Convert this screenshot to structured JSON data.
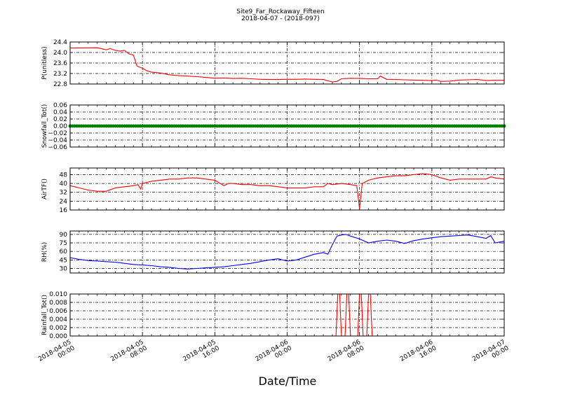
{
  "figure": {
    "title_line1": "Site9_Far_Rockaway_Fifteen",
    "title_line2": "2018-04-07 - (2018-097)",
    "xlabel": "Date/Time"
  },
  "chart_data": {
    "type": "line",
    "x_axis": {
      "range": [
        "2018-04-05 00:00",
        "2018-04-07 00:00"
      ],
      "ticks": [
        "2018-04-05 00:00",
        "2018-04-05 08:00",
        "2018-04-05 16:00",
        "2018-04-06 00:00",
        "2018-04-06 08:00",
        "2018-04-06 16:00",
        "2018-04-07 00:00"
      ],
      "tick_labels": [
        [
          "2018-04-05",
          "00:00"
        ],
        [
          "2018-04-05",
          "08:00"
        ],
        [
          "2018-04-05",
          "16:00"
        ],
        [
          "2018-04-06",
          "00:00"
        ],
        [
          "2018-04-06",
          "08:00"
        ],
        [
          "2018-04-06",
          "16:00"
        ],
        [
          "2018-04-07",
          "00:00"
        ]
      ]
    },
    "grid": "dash-dot, black",
    "panels": [
      {
        "ylabel": "P(unitless)",
        "ylim": [
          22.8,
          24.4
        ],
        "yticks": [
          "24.4",
          "24.0",
          "23.6",
          "23.2",
          "22.8"
        ],
        "ytick_values": [
          24.4,
          24.0,
          23.6,
          23.2,
          22.8
        ],
        "color": "#ff0000",
        "marker": false,
        "hours": [
          0,
          3,
          4,
          4.4,
          5,
          5.5,
          6,
          6.5,
          7,
          7.4,
          8,
          8.5,
          9,
          10,
          11,
          12,
          13,
          14,
          15,
          16,
          17,
          18,
          19,
          20,
          21,
          22,
          23,
          24,
          25,
          26,
          27,
          28,
          28.5,
          29,
          29.5,
          30,
          31,
          32,
          33,
          34,
          34.3,
          35,
          36,
          37,
          38,
          39,
          40,
          40.5,
          41,
          42,
          43,
          44,
          45,
          46,
          47,
          48
        ],
        "values": [
          24.17,
          24.18,
          24.1,
          24.15,
          24.08,
          24.05,
          24.08,
          23.95,
          23.9,
          23.48,
          23.4,
          23.3,
          23.25,
          23.22,
          23.15,
          23.12,
          23.1,
          23.08,
          23.05,
          23.02,
          23.03,
          23.01,
          23.02,
          23.0,
          22.98,
          22.97,
          22.97,
          22.98,
          22.98,
          22.99,
          22.98,
          22.97,
          22.92,
          22.88,
          22.9,
          23.0,
          23.02,
          23.01,
          23.0,
          23.0,
          23.1,
          22.98,
          22.97,
          22.96,
          22.95,
          22.94,
          22.93,
          22.95,
          22.9,
          22.91,
          22.95,
          22.96,
          22.97,
          22.93,
          22.94,
          22.94
        ]
      },
      {
        "ylabel": "Snowfall_Tot()",
        "ylim": [
          -0.06,
          0.06
        ],
        "yticks": [
          "0.06",
          "0.04",
          "0.02",
          "0.00",
          "−0.02",
          "−0.04",
          "−0.06"
        ],
        "ytick_values": [
          0.06,
          0.04,
          0.02,
          0.0,
          -0.02,
          -0.04,
          -0.06
        ],
        "color": "#008000",
        "marker": true,
        "hours": [
          0,
          0.25,
          0.5,
          0.75,
          1,
          1.25,
          1.5,
          1.75,
          2,
          2.25,
          2.5,
          2.75,
          3,
          3.25,
          3.5,
          3.75,
          4,
          4.25,
          4.5,
          4.75,
          5,
          5.25,
          5.5,
          5.75,
          6,
          6.25,
          6.5,
          6.75,
          7,
          7.25,
          7.5,
          7.75,
          8,
          8.25,
          8.5,
          8.75,
          9,
          9.25,
          9.5,
          9.75,
          10,
          10.25,
          10.5,
          10.75,
          11,
          11.25,
          11.5,
          11.75,
          12,
          12.25,
          12.5,
          12.75,
          13,
          13.25,
          13.5,
          13.75,
          14,
          14.25,
          14.5,
          14.75,
          15,
          15.25,
          15.5,
          15.75,
          16,
          16.25,
          16.5,
          16.75,
          17,
          17.25,
          17.5,
          17.75,
          18,
          18.25,
          18.5,
          18.75,
          19,
          19.25,
          19.5,
          19.75,
          20,
          20.25,
          20.5,
          20.75,
          21,
          21.25,
          21.5,
          21.75,
          22,
          22.25,
          22.5,
          22.75,
          23,
          23.25,
          23.5,
          23.75,
          24,
          24.25,
          24.5,
          24.75,
          25,
          25.25,
          25.5,
          25.75,
          26,
          26.25,
          26.5,
          26.75,
          27,
          27.25,
          27.5,
          27.75,
          28,
          28.25,
          28.5,
          28.75,
          29,
          29.25,
          29.5,
          29.75,
          30,
          30.25,
          30.5,
          30.75,
          31,
          31.25,
          31.5,
          31.75,
          32,
          32.25,
          32.5,
          32.75,
          33,
          33.25,
          33.5,
          33.75,
          34,
          34.25,
          34.5,
          34.75,
          35,
          35.25,
          35.5,
          35.75,
          36,
          36.25,
          36.5,
          36.75,
          37,
          37.25,
          37.5,
          37.75,
          38,
          38.25,
          38.5,
          38.75,
          39,
          39.25,
          39.5,
          39.75,
          40,
          40.25,
          40.5,
          40.75,
          41,
          41.25,
          41.5,
          41.75,
          42,
          42.25,
          42.5,
          42.75,
          43,
          43.25,
          43.5,
          43.75,
          44,
          44.25,
          44.5,
          44.75,
          45,
          45.25,
          45.5,
          45.75,
          46,
          46.25,
          46.5,
          46.75,
          47,
          47.25,
          47.5,
          47.75,
          48
        ],
        "values": [
          0,
          0,
          0,
          0,
          0,
          0,
          0,
          0,
          0,
          0,
          0,
          0,
          0,
          0,
          0,
          0,
          0,
          0,
          0,
          0,
          0,
          0,
          0,
          0,
          0,
          0,
          0,
          0,
          0,
          0,
          0,
          0,
          0,
          0,
          0,
          0,
          0,
          0,
          0,
          0,
          0,
          0,
          0,
          0,
          0,
          0,
          0,
          0,
          0,
          0,
          0,
          0,
          0,
          0,
          0,
          0,
          0,
          0,
          0,
          0,
          0,
          0,
          0,
          0,
          0,
          0,
          0,
          0,
          0,
          0,
          0,
          0,
          0,
          0,
          0,
          0,
          0,
          0,
          0,
          0,
          0,
          0,
          0,
          0,
          0,
          0,
          0,
          0,
          0,
          0,
          0,
          0,
          0,
          0,
          0,
          0,
          0,
          0,
          0,
          0,
          0,
          0,
          0,
          0,
          0,
          0,
          0,
          0,
          0,
          0,
          0,
          0,
          0,
          0,
          0,
          0,
          0,
          0,
          0,
          0,
          0,
          0,
          0,
          0,
          0,
          0,
          0,
          0,
          0,
          0,
          0,
          0,
          0,
          0,
          0,
          0,
          0,
          0,
          0,
          0,
          0,
          0,
          0,
          0,
          0,
          0,
          0,
          0,
          0,
          0,
          0,
          0,
          0,
          0,
          0,
          0,
          0,
          0,
          0,
          0,
          0,
          0,
          0,
          0,
          0,
          0,
          0,
          0,
          0,
          0,
          0,
          0,
          0,
          0,
          0,
          0,
          0,
          0,
          0,
          0,
          0,
          0,
          0,
          0,
          0,
          0,
          0,
          0,
          0,
          0,
          0,
          0,
          0
        ]
      },
      {
        "ylabel": "AirTF()",
        "ylim": [
          16,
          54
        ],
        "yticks": [
          "48",
          "40",
          "32",
          "24",
          "16"
        ],
        "ytick_values": [
          48,
          40,
          32,
          24,
          16
        ],
        "color": "#ff0000",
        "marker": false,
        "hours": [
          0,
          1,
          2,
          3,
          4,
          5,
          6,
          7,
          7.5,
          7.8,
          8,
          9,
          10,
          11,
          12,
          13,
          14,
          15,
          16,
          17,
          17.5,
          18,
          19,
          20,
          21,
          22,
          23,
          24,
          25,
          26,
          27,
          28,
          28.5,
          29,
          30,
          31,
          31.7,
          32,
          32.3,
          33,
          34,
          35,
          36,
          37,
          38,
          39,
          40,
          41,
          41.5,
          42,
          43,
          44,
          45,
          46,
          46.5,
          47,
          48
        ],
        "values": [
          38,
          36,
          34,
          33,
          33,
          36,
          37,
          38,
          39,
          35,
          40,
          42,
          43,
          44,
          44,
          45,
          45,
          44,
          43,
          38,
          40,
          40,
          39,
          39,
          38,
          38,
          37,
          36,
          36,
          36,
          37,
          37,
          40,
          39,
          40,
          39,
          38,
          17,
          40,
          43,
          45,
          46,
          47,
          47,
          48,
          49,
          48,
          45,
          44,
          43,
          44,
          44,
          44,
          44,
          46,
          45,
          44
        ]
      },
      {
        "ylabel": "RH(%)",
        "ylim": [
          22,
          96
        ],
        "yticks": [
          "90",
          "75",
          "60",
          "45",
          "30"
        ],
        "ytick_values": [
          90,
          75,
          60,
          45,
          30
        ],
        "color": "#0000ff",
        "marker": false,
        "hours": [
          0,
          1,
          2,
          3,
          4,
          5,
          6,
          7,
          8,
          9,
          10,
          11,
          12,
          13,
          14,
          15,
          16,
          17,
          18,
          19,
          20,
          21,
          22,
          23,
          24,
          25,
          26,
          27,
          28,
          28.5,
          29,
          29.5,
          30,
          30.5,
          31,
          32,
          33,
          34,
          35,
          36,
          37,
          38,
          39,
          40,
          41,
          42,
          43,
          44,
          45,
          46,
          46.5,
          47,
          48
        ],
        "values": [
          49,
          46,
          44,
          43,
          42,
          41,
          39,
          37,
          36,
          35,
          33,
          32,
          30,
          29,
          30,
          31,
          32,
          33,
          35,
          37,
          39,
          42,
          45,
          47,
          43,
          45,
          50,
          55,
          58,
          55,
          72,
          87,
          89,
          90,
          87,
          82,
          75,
          78,
          80,
          78,
          74,
          79,
          82,
          84,
          86,
          87,
          88,
          89,
          86,
          83,
          88,
          75,
          78
        ]
      },
      {
        "ylabel": "Rainfall_Tot()",
        "ylim": [
          0,
          0.01
        ],
        "yticks": [
          "0.010",
          "0.008",
          "0.006",
          "0.004",
          "0.002",
          "0.000"
        ],
        "ytick_values": [
          0.01,
          0.008,
          0.006,
          0.004,
          0.002,
          0.0
        ],
        "color": "#ff0000",
        "marker": false,
        "hours": [
          0,
          29.4,
          29.6,
          29.8,
          30.0,
          30.2,
          30.4,
          30.6,
          30.8,
          31,
          31.2,
          31.4,
          31.6,
          31.8,
          32.0,
          32.2,
          32.4,
          32.6,
          32.8,
          33.0,
          33.2,
          33.4,
          33.6,
          48
        ],
        "values": [
          0,
          0,
          0.01,
          0.01,
          0,
          0,
          0,
          0.01,
          0.01,
          0,
          0,
          0,
          0,
          0,
          0.01,
          0.01,
          0,
          0,
          0,
          0.01,
          0.01,
          0,
          0,
          0
        ]
      }
    ]
  }
}
